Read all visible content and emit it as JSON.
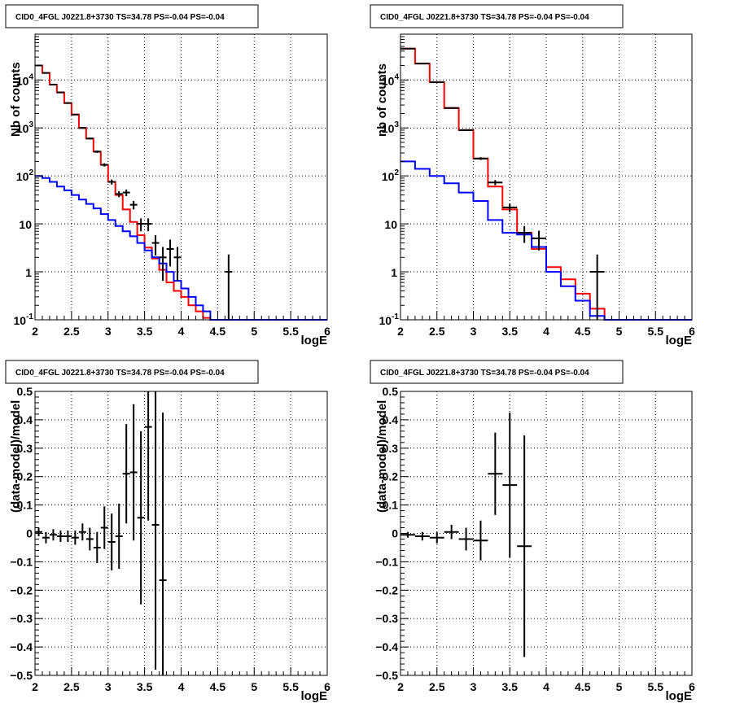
{
  "chart_data": [
    {
      "type": "histogram-step",
      "title": "CID0_4FGL J0221.8+3730 TS=34.78 PS=-0.04 PS=-0.04",
      "xlabel": "logE",
      "ylabel": "Nb of counts",
      "xlim": [
        2,
        6
      ],
      "ylim": [
        0.1,
        90000
      ],
      "yscale": "log",
      "grid": true,
      "x_ticks": [
        "2",
        "2.5",
        "3",
        "3.5",
        "4",
        "4.5",
        "5",
        "5.5",
        "6"
      ],
      "y_ticks": [
        {
          "value": 0.1,
          "base": "10",
          "exp": "-1"
        },
        {
          "value": 1,
          "base": "1",
          "exp": ""
        },
        {
          "value": 10,
          "base": "10",
          "exp": ""
        },
        {
          "value": 100,
          "base": "10",
          "exp": "2"
        },
        {
          "value": 1000,
          "base": "10",
          "exp": "3"
        },
        {
          "value": 10000,
          "base": "10",
          "exp": "4"
        }
      ],
      "bin_edges": [
        2,
        2.1,
        2.2,
        2.3,
        2.4,
        2.5,
        2.6,
        2.7,
        2.8,
        2.9,
        3,
        3.1,
        3.2,
        3.3,
        3.4,
        3.5,
        3.6,
        3.7,
        3.8,
        3.9,
        4,
        4.1,
        4.2,
        4.3,
        4.4,
        4.5,
        4.6,
        4.7,
        4.8,
        4.9,
        5,
        5.1,
        5.2,
        5.3,
        5.4,
        5.5,
        5.6,
        5.7,
        5.8,
        5.9,
        6
      ],
      "series": [
        {
          "color": "#ff0000",
          "values": [
            20000,
            14000,
            8000,
            5500,
            3300,
            1900,
            1000,
            600,
            320,
            170,
            75,
            40,
            20,
            11,
            5.8,
            3.2,
            1.9,
            1.1,
            0.6,
            0.4,
            0.3,
            0.2,
            0.15,
            0.11,
            0.1,
            0.1,
            0.1,
            0.1,
            0.1,
            0.1,
            0.1,
            0.1,
            0.1,
            0.1,
            0.1,
            0.1,
            0.1,
            0.1,
            0.1,
            0.1
          ]
        },
        {
          "color": "#0000ff",
          "values": [
            100,
            90,
            75,
            60,
            50,
            40,
            32,
            26,
            21,
            16,
            12,
            9,
            7,
            5.5,
            4,
            2.8,
            2,
            1.5,
            1,
            0.65,
            0.45,
            0.3,
            0.2,
            0.15,
            0.1,
            0.1,
            0.1,
            0.1,
            0.1,
            0.1,
            0.1,
            0.1,
            0.1,
            0.1,
            0.1,
            0.1,
            0.1,
            0.1,
            0.1,
            0.1
          ]
        }
      ],
      "data_points": [
        {
          "x": 2.05,
          "y": 20000,
          "xerr": 0.05,
          "ylo": 19800,
          "yhi": 20200
        },
        {
          "x": 2.15,
          "y": 14000,
          "xerr": 0.05,
          "ylo": 13800,
          "yhi": 14200
        },
        {
          "x": 2.25,
          "y": 8000,
          "xerr": 0.05,
          "ylo": 7900,
          "yhi": 8100
        },
        {
          "x": 2.35,
          "y": 5500,
          "xerr": 0.05,
          "ylo": 5400,
          "yhi": 5600
        },
        {
          "x": 2.45,
          "y": 3300,
          "xerr": 0.05,
          "ylo": 3240,
          "yhi": 3360
        },
        {
          "x": 2.55,
          "y": 1900,
          "xerr": 0.05,
          "ylo": 1850,
          "yhi": 1950
        },
        {
          "x": 2.65,
          "y": 1000,
          "xerr": 0.05,
          "ylo": 970,
          "yhi": 1030
        },
        {
          "x": 2.75,
          "y": 600,
          "xerr": 0.05,
          "ylo": 575,
          "yhi": 625
        },
        {
          "x": 2.85,
          "y": 320,
          "xerr": 0.05,
          "ylo": 302,
          "yhi": 338
        },
        {
          "x": 2.95,
          "y": 170,
          "xerr": 0.05,
          "ylo": 157,
          "yhi": 183
        },
        {
          "x": 3.05,
          "y": 75,
          "xerr": 0.05,
          "ylo": 66,
          "yhi": 84
        },
        {
          "x": 3.15,
          "y": 42,
          "xerr": 0.05,
          "ylo": 36,
          "yhi": 48
        },
        {
          "x": 3.25,
          "y": 45,
          "xerr": 0.05,
          "ylo": 38,
          "yhi": 52
        },
        {
          "x": 3.35,
          "y": 25,
          "xerr": 0.05,
          "ylo": 20,
          "yhi": 30
        },
        {
          "x": 3.45,
          "y": 10,
          "xerr": 0.05,
          "ylo": 7,
          "yhi": 13
        },
        {
          "x": 3.55,
          "y": 10,
          "xerr": 0.05,
          "ylo": 7,
          "yhi": 13
        },
        {
          "x": 3.65,
          "y": 4,
          "xerr": 0.05,
          "ylo": 2.2,
          "yhi": 5.8
        },
        {
          "x": 3.75,
          "y": 2,
          "xerr": 0.05,
          "ylo": 0.65,
          "yhi": 3.3
        },
        {
          "x": 3.85,
          "y": 3,
          "xerr": 0.05,
          "ylo": 1.3,
          "yhi": 4.7
        },
        {
          "x": 3.95,
          "y": 2,
          "xerr": 0.05,
          "ylo": 0.65,
          "yhi": 3.3
        },
        {
          "x": 4.65,
          "y": 1,
          "xerr": 0.05,
          "ylo": 0.1,
          "yhi": 2.3
        }
      ]
    },
    {
      "type": "histogram-step",
      "title": "CID0_4FGL J0221.8+3730 TS=34.78 PS=-0.04 PS=-0.04",
      "xlabel": "logE",
      "ylabel": "nb of counts",
      "xlim": [
        2,
        6
      ],
      "ylim": [
        0.1,
        90000
      ],
      "yscale": "log",
      "grid": true,
      "x_ticks": [
        "2",
        "2.5",
        "3",
        "3.5",
        "4",
        "4.5",
        "5",
        "5.5",
        "6"
      ],
      "y_ticks": [
        {
          "value": 0.1,
          "base": "10",
          "exp": "-1"
        },
        {
          "value": 1,
          "base": "1",
          "exp": ""
        },
        {
          "value": 10,
          "base": "10",
          "exp": ""
        },
        {
          "value": 100,
          "base": "10",
          "exp": "2"
        },
        {
          "value": 1000,
          "base": "10",
          "exp": "3"
        },
        {
          "value": 10000,
          "base": "10",
          "exp": "4"
        }
      ],
      "bin_edges": [
        2,
        2.2,
        2.4,
        2.6,
        2.8,
        3,
        3.2,
        3.4,
        3.6,
        3.8,
        4,
        4.2,
        4.4,
        4.6,
        4.8,
        5,
        5.2,
        5.4,
        5.6,
        5.8,
        6
      ],
      "series": [
        {
          "color": "#ff0000",
          "values": [
            45000,
            22000,
            9000,
            2600,
            900,
            230,
            60,
            20,
            6.5,
            3,
            1.25,
            0.7,
            0.35,
            0.17,
            0.1,
            0.1,
            0.1,
            0.1,
            0.1,
            0.1
          ]
        },
        {
          "color": "#0000ff",
          "values": [
            200,
            140,
            100,
            70,
            45,
            30,
            12,
            6.5,
            6,
            3.3,
            1,
            0.5,
            0.25,
            0.12,
            0.1,
            0.1,
            0.1,
            0.1,
            0.1,
            0.1
          ]
        }
      ],
      "data_points": [
        {
          "x": 2.1,
          "y": 45000,
          "xerr": 0.1,
          "ylo": 44600,
          "yhi": 45400
        },
        {
          "x": 2.3,
          "y": 22000,
          "xerr": 0.1,
          "ylo": 21700,
          "yhi": 22300
        },
        {
          "x": 2.5,
          "y": 9000,
          "xerr": 0.1,
          "ylo": 8800,
          "yhi": 9200
        },
        {
          "x": 2.7,
          "y": 2600,
          "xerr": 0.1,
          "ylo": 2500,
          "yhi": 2700
        },
        {
          "x": 2.9,
          "y": 900,
          "xerr": 0.1,
          "ylo": 870,
          "yhi": 930
        },
        {
          "x": 3.1,
          "y": 230,
          "xerr": 0.1,
          "ylo": 215,
          "yhi": 245
        },
        {
          "x": 3.3,
          "y": 73,
          "xerr": 0.1,
          "ylo": 64,
          "yhi": 82
        },
        {
          "x": 3.5,
          "y": 22,
          "xerr": 0.1,
          "ylo": 17.5,
          "yhi": 26.5
        },
        {
          "x": 3.7,
          "y": 6.5,
          "xerr": 0.1,
          "ylo": 4,
          "yhi": 9
        },
        {
          "x": 3.9,
          "y": 5,
          "xerr": 0.1,
          "ylo": 2.8,
          "yhi": 7.2
        },
        {
          "x": 4.7,
          "y": 1,
          "xerr": 0.1,
          "ylo": 0.1,
          "yhi": 2.3
        }
      ]
    },
    {
      "type": "scatter-errorbar",
      "title": "CID0_4FGL J0221.8+3730 TS=34.78 PS=-0.04 PS=-0.04",
      "xlabel": "logE",
      "ylabel": "(data-model)/model",
      "xlim": [
        2,
        6
      ],
      "ylim": [
        -0.5,
        0.5
      ],
      "grid": true,
      "x_ticks": [
        "2",
        "2.5",
        "3",
        "3.5",
        "4",
        "4.5",
        "5",
        "5.5",
        "6"
      ],
      "y_ticks": [
        "-0.5",
        "-0.4",
        "-0.3",
        "-0.2",
        "-0.1",
        "0",
        "0.1",
        "0.2",
        "0.3",
        "0.4",
        "0.5"
      ],
      "points": [
        {
          "x": 2.05,
          "y": 0.005,
          "xerr": 0.05,
          "yerr": 0.015
        },
        {
          "x": 2.15,
          "y": -0.015,
          "xerr": 0.05,
          "yerr": 0.02
        },
        {
          "x": 2.25,
          "y": -0.005,
          "xerr": 0.05,
          "yerr": 0.02
        },
        {
          "x": 2.35,
          "y": -0.01,
          "xerr": 0.05,
          "yerr": 0.02
        },
        {
          "x": 2.45,
          "y": -0.01,
          "xerr": 0.05,
          "yerr": 0.02
        },
        {
          "x": 2.55,
          "y": -0.015,
          "xerr": 0.05,
          "yerr": 0.025
        },
        {
          "x": 2.65,
          "y": 0.005,
          "xerr": 0.05,
          "yerr": 0.03
        },
        {
          "x": 2.75,
          "y": -0.02,
          "xerr": 0.05,
          "yerr": 0.04
        },
        {
          "x": 2.85,
          "y": -0.05,
          "xerr": 0.05,
          "yerr": 0.055
        },
        {
          "x": 2.95,
          "y": 0.02,
          "xerr": 0.05,
          "yerr": 0.075
        },
        {
          "x": 3.05,
          "y": -0.03,
          "xerr": 0.05,
          "yerr": 0.1
        },
        {
          "x": 3.15,
          "y": -0.01,
          "xerr": 0.05,
          "yerr": 0.115
        },
        {
          "x": 3.25,
          "y": 0.21,
          "xerr": 0.05,
          "yerr": 0.175
        },
        {
          "x": 3.35,
          "y": 0.215,
          "xerr": 0.05,
          "yerr": 0.24
        },
        {
          "x": 3.45,
          "y": 0.055,
          "xerr": 0.05,
          "yerr": 0.305
        },
        {
          "x": 3.55,
          "y": 0.375,
          "xerr": 0.05,
          "yerr": 0.33
        },
        {
          "x": 3.65,
          "y": 0.03,
          "xerr": 0.05,
          "yerr": 0.51
        },
        {
          "x": 3.75,
          "y": -0.165,
          "xerr": 0.05,
          "yerr": 0.59
        }
      ]
    },
    {
      "type": "scatter-errorbar",
      "title": "CID0_4FGL J0221.8+3730 TS=34.78 PS=-0.04 PS=-0.04",
      "xlabel": "logE",
      "ylabel": "(data-model)/model",
      "xlim": [
        2,
        6
      ],
      "ylim": [
        -0.5,
        0.5
      ],
      "grid": true,
      "x_ticks": [
        "2",
        "2.5",
        "3",
        "3.5",
        "4",
        "4.5",
        "5",
        "5.5",
        "6"
      ],
      "y_ticks": [
        "-0.5",
        "-0.4",
        "-0.3",
        "-0.2",
        "-0.1",
        "0",
        "0.1",
        "0.2",
        "0.3",
        "0.4",
        "0.5"
      ],
      "points": [
        {
          "x": 2.1,
          "y": -0.005,
          "xerr": 0.1,
          "yerr": 0.01
        },
        {
          "x": 2.3,
          "y": -0.01,
          "xerr": 0.1,
          "yerr": 0.015
        },
        {
          "x": 2.5,
          "y": -0.015,
          "xerr": 0.1,
          "yerr": 0.02
        },
        {
          "x": 2.7,
          "y": 0.005,
          "xerr": 0.1,
          "yerr": 0.025
        },
        {
          "x": 2.9,
          "y": -0.02,
          "xerr": 0.1,
          "yerr": 0.04
        },
        {
          "x": 3.1,
          "y": -0.025,
          "xerr": 0.1,
          "yerr": 0.07
        },
        {
          "x": 3.3,
          "y": 0.21,
          "xerr": 0.1,
          "yerr": 0.145
        },
        {
          "x": 3.5,
          "y": 0.17,
          "xerr": 0.1,
          "yerr": 0.255
        },
        {
          "x": 3.7,
          "y": -0.045,
          "xerr": 0.1,
          "yerr": 0.39
        }
      ]
    }
  ]
}
